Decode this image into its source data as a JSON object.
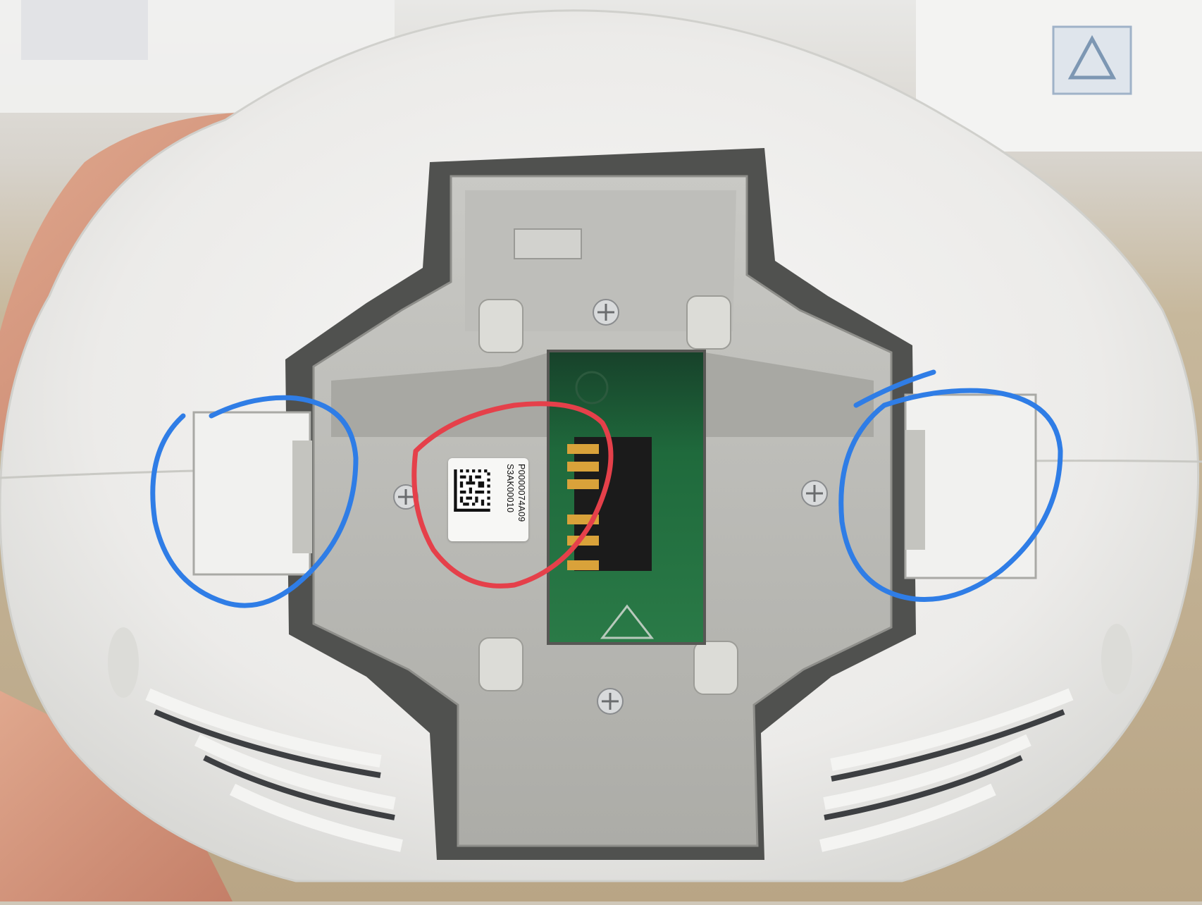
{
  "photo": {
    "subject": "white device housing with PCB and pogo-pin connector",
    "label": {
      "line1": "P0000074A09",
      "line2": "S3AK00010"
    },
    "annotations": [
      {
        "name": "left-latch-circle",
        "color": "#2f7de6"
      },
      {
        "name": "right-latch-circle",
        "color": "#2f7de6"
      },
      {
        "name": "label-connector-circle",
        "color": "#e5404a"
      }
    ],
    "colors": {
      "housing": "#eeeeec",
      "inner_gray": "#b9b9b4",
      "pcb_green": "#1f6a3c",
      "gold_pins": "#d9a23a"
    }
  }
}
